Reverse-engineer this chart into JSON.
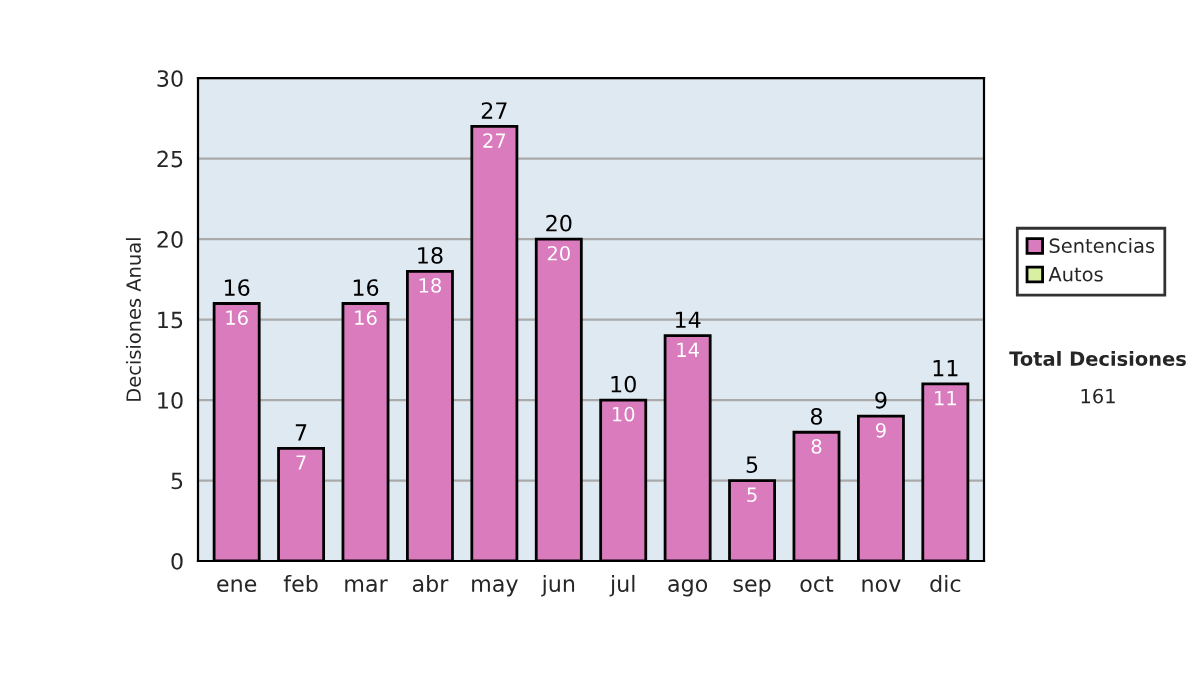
{
  "chart_data": {
    "type": "bar",
    "ylabel": "Decisiones Anual",
    "categories": [
      "ene",
      "feb",
      "mar",
      "abr",
      "may",
      "jun",
      "jul",
      "ago",
      "sep",
      "oct",
      "nov",
      "dic"
    ],
    "series": [
      {
        "name": "Sentencias",
        "color": "#d97bbd",
        "values": [
          16,
          7,
          16,
          18,
          27,
          20,
          10,
          14,
          5,
          8,
          9,
          11
        ],
        "value_labels": [
          "16",
          "7",
          "16",
          "18",
          "27",
          "20",
          "10",
          "14",
          "5",
          "8",
          "9",
          "11"
        ]
      },
      {
        "name": "Autos",
        "color": "#d9f0a3",
        "values": [
          0,
          0,
          0,
          0,
          0,
          0,
          0,
          0,
          0,
          0,
          0,
          0
        ]
      }
    ],
    "stacked": true,
    "totals": [
      "16",
      "7",
      "16",
      "18",
      "27",
      "20",
      "10",
      "14",
      "5",
      "8",
      "9",
      "11"
    ],
    "ylim": [
      0,
      30
    ],
    "yticks": [
      0,
      5,
      10,
      15,
      20,
      25,
      30
    ],
    "grid": "y",
    "legend": "right",
    "annotations": [
      "Total Decisiones",
      "161"
    ]
  }
}
